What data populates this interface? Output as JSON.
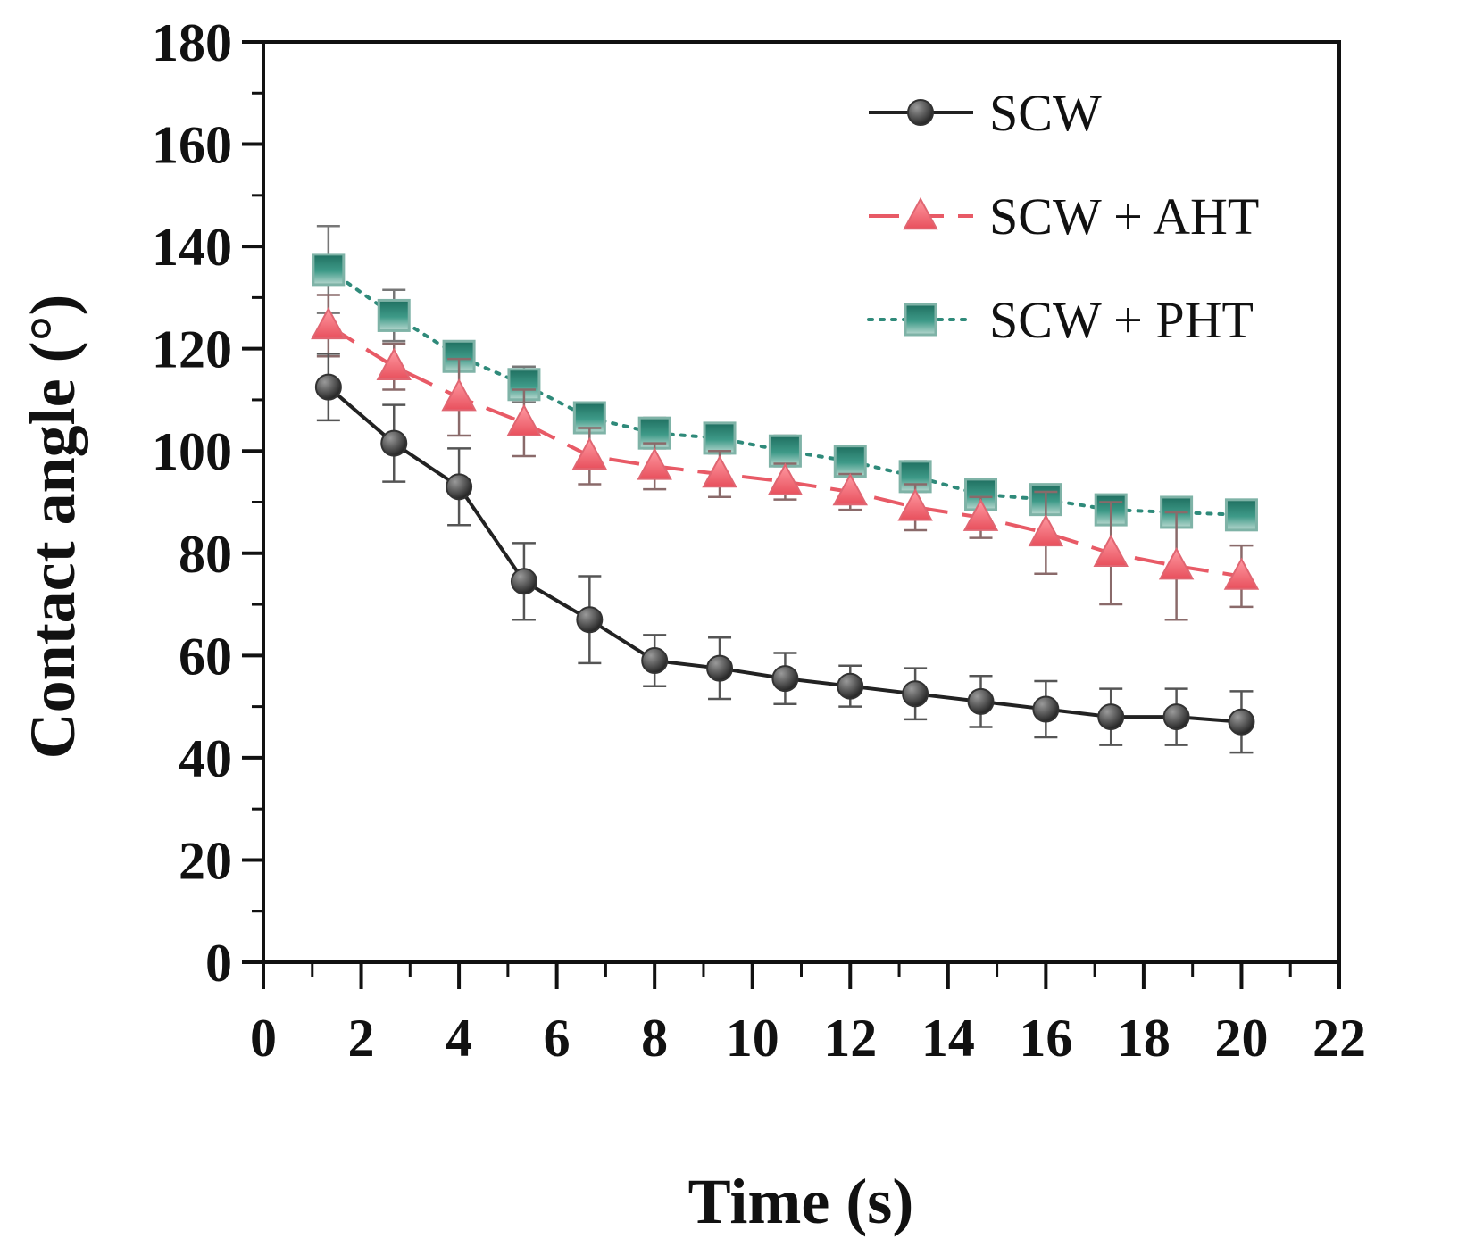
{
  "chart_data": {
    "type": "line",
    "title": "",
    "xlabel": "Time (s)",
    "ylabel": "Contact angle (°)",
    "xlim": [
      0,
      22
    ],
    "ylim": [
      0,
      180
    ],
    "xticks": [
      0,
      2,
      4,
      6,
      8,
      10,
      12,
      14,
      16,
      18,
      20,
      22
    ],
    "yticks": [
      0,
      20,
      40,
      60,
      80,
      100,
      120,
      140,
      160,
      180
    ],
    "x": [
      1.33,
      2.67,
      4.0,
      5.33,
      6.67,
      8.0,
      9.33,
      10.67,
      12.0,
      13.33,
      14.67,
      16.0,
      17.33,
      18.67,
      20.0
    ],
    "series": [
      {
        "name": "SCW",
        "marker": "circle",
        "line": "solid",
        "color": "#222222",
        "values": [
          112.5,
          101.5,
          93,
          74.5,
          67,
          59,
          57.5,
          55.5,
          54,
          52.5,
          51,
          49.5,
          48,
          48,
          47
        ],
        "errors": [
          6.5,
          7.5,
          7.5,
          7.5,
          8.5,
          5,
          6,
          5,
          4,
          5,
          5,
          5.5,
          5.5,
          5.5,
          6
        ]
      },
      {
        "name": "SCW + AHT",
        "marker": "triangle",
        "line": "dashed",
        "color": "#e85a66",
        "values": [
          124.5,
          116.5,
          110.5,
          105.5,
          99,
          97,
          95.5,
          94,
          92,
          89,
          87,
          84,
          80,
          77.5,
          75.5
        ],
        "errors": [
          6,
          4.5,
          7.5,
          6.5,
          5.5,
          4.5,
          4.5,
          3.5,
          3.5,
          4.5,
          4,
          8,
          10,
          10.5,
          6
        ]
      },
      {
        "name": "SCW + PHT",
        "marker": "square",
        "line": "dotted",
        "color": "#2f8a7a",
        "values": [
          135.5,
          126.5,
          118.5,
          113,
          106.5,
          103.5,
          102.5,
          100,
          98,
          95,
          91.5,
          90.5,
          88.5,
          88,
          87.5
        ],
        "errors": [
          8.5,
          5,
          2.5,
          3.5,
          3,
          3,
          3,
          3,
          3,
          3,
          2.5,
          2.5,
          2.5,
          2.5,
          2
        ]
      }
    ],
    "legend": {
      "position": "top-right"
    },
    "grid": false
  }
}
